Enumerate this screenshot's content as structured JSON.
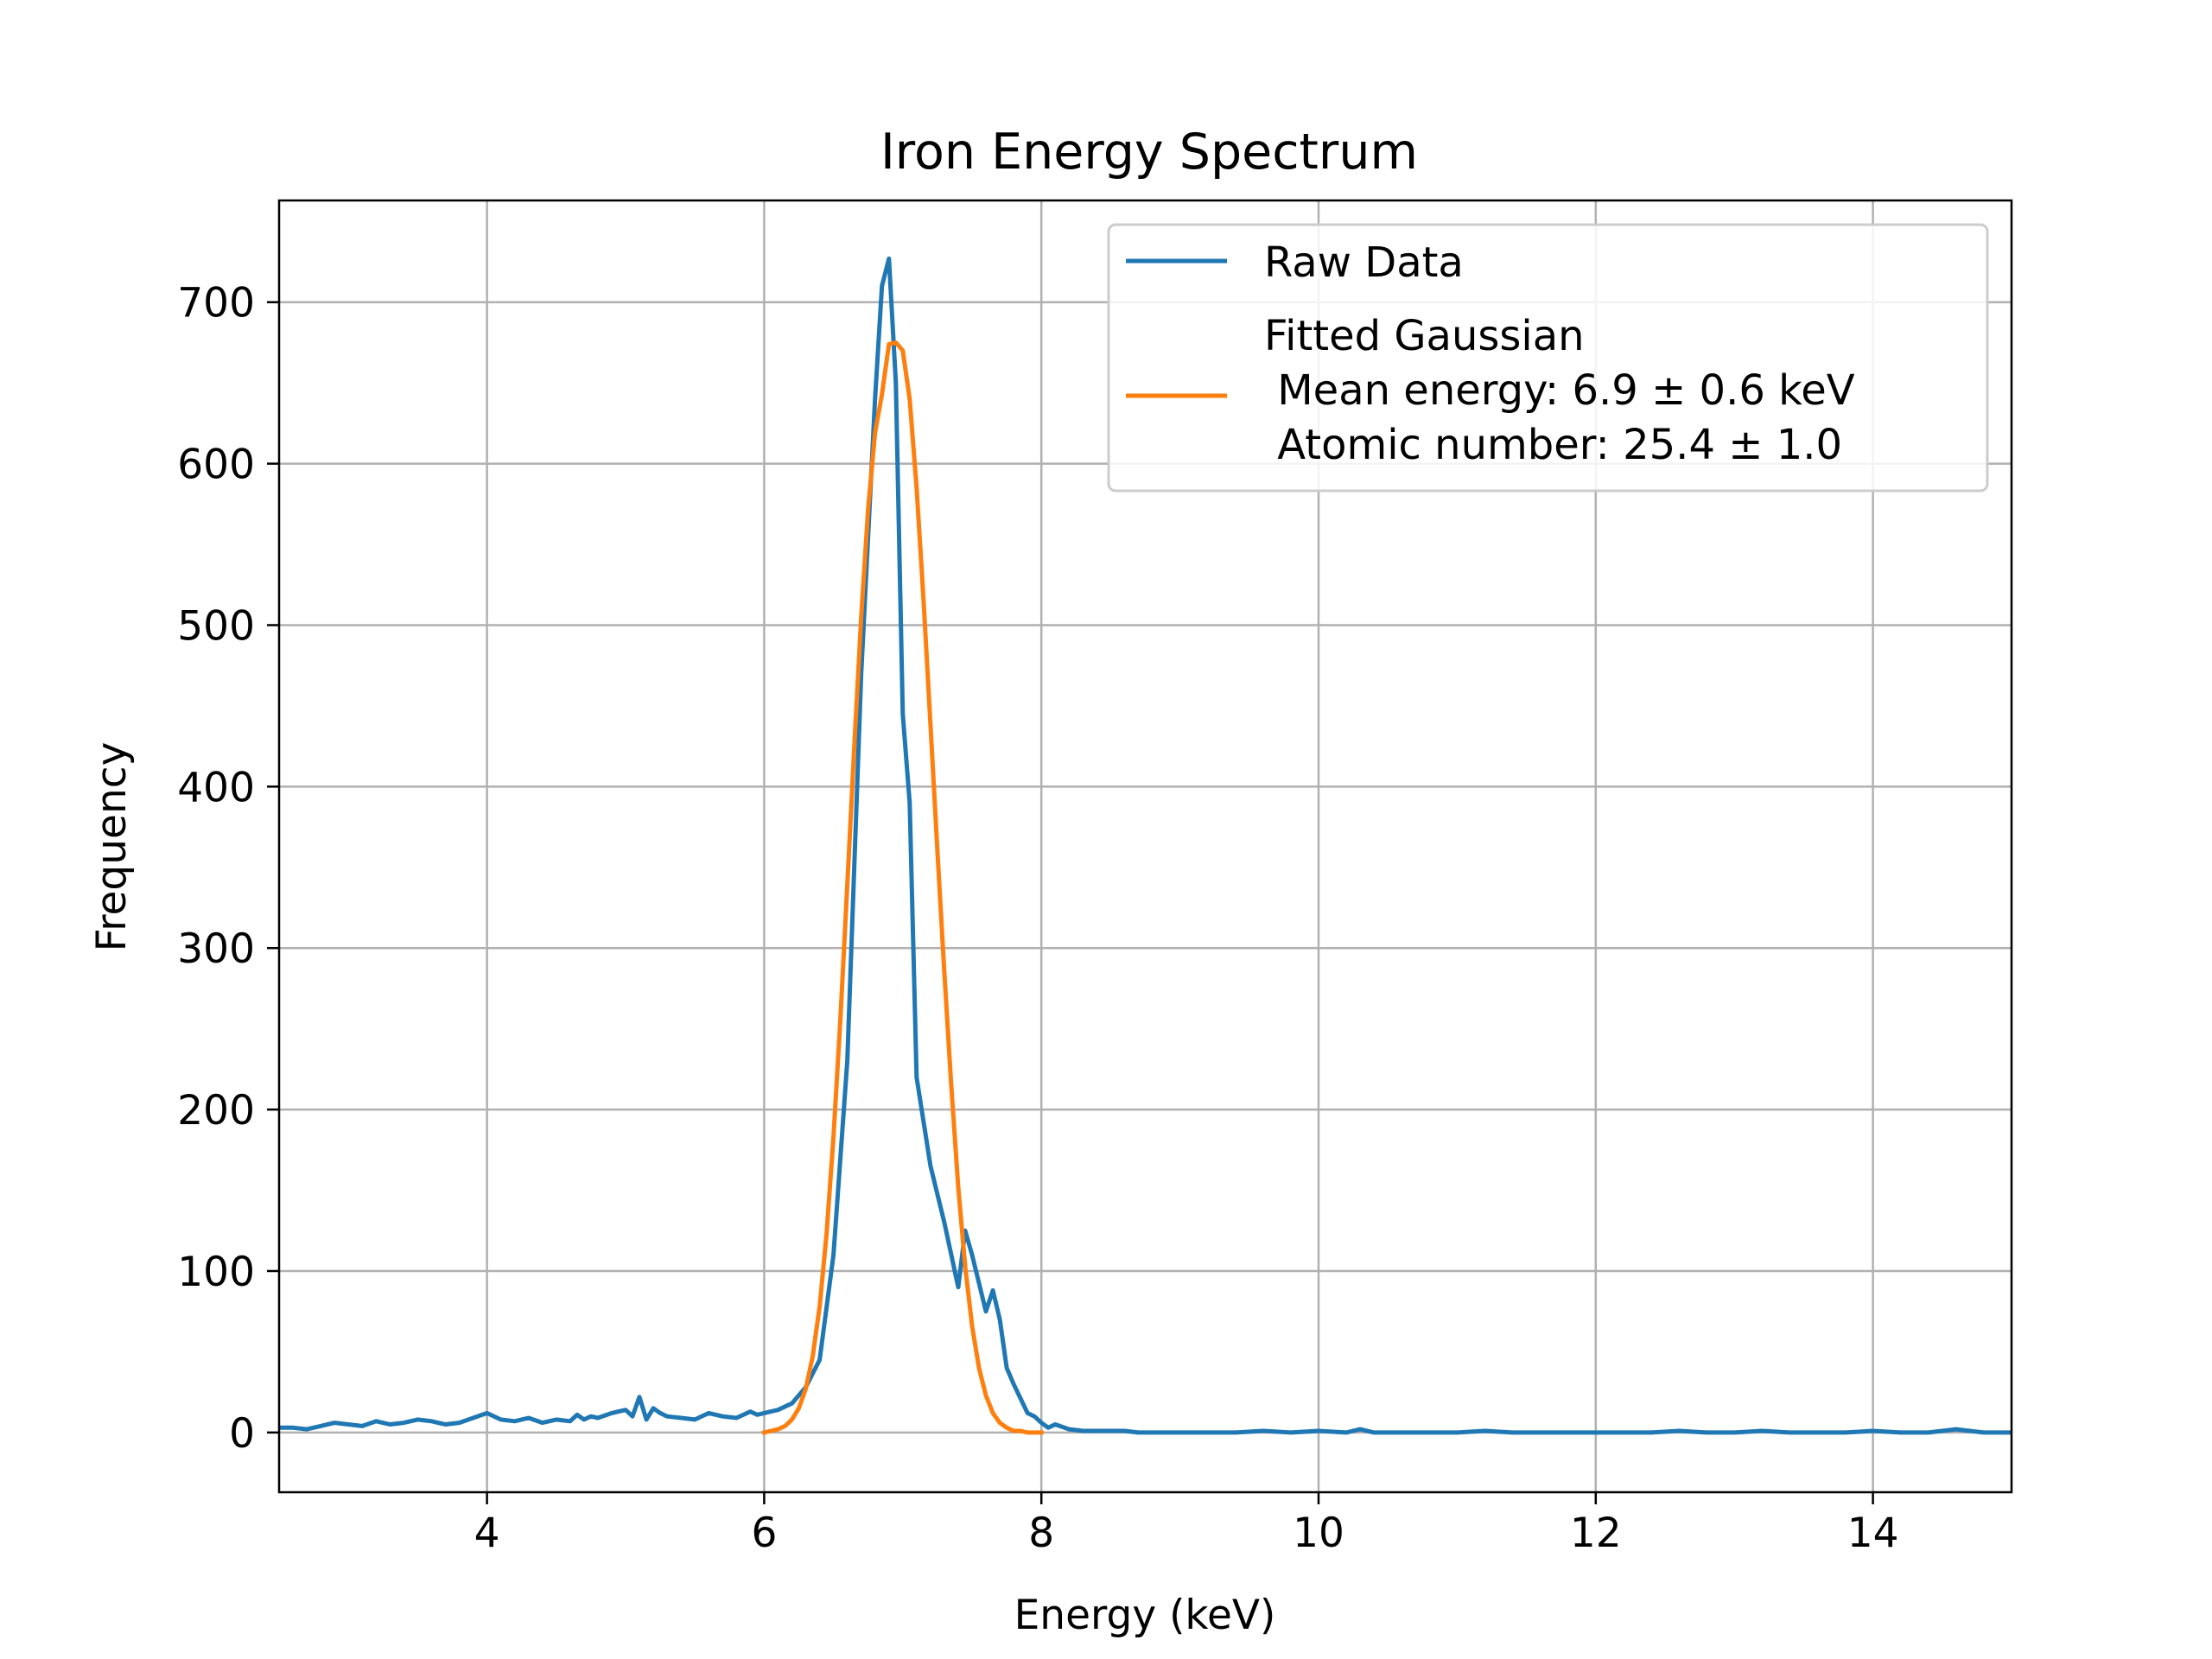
{
  "chart_data": {
    "type": "line",
    "title": "Iron Energy Spectrum",
    "xlabel": "Energy (keV)",
    "ylabel": "Frequency",
    "xlim": [
      2.5,
      15
    ],
    "ylim": [
      -37,
      763
    ],
    "xticks": [
      4,
      6,
      8,
      10,
      12,
      14
    ],
    "yticks": [
      0,
      100,
      200,
      300,
      400,
      500,
      600,
      700
    ],
    "grid": true,
    "legend_placement": "top-right",
    "colors": {
      "raw": "#1f77b4",
      "fit": "#ff7f0e",
      "grid": "#b0b0b0"
    },
    "series": [
      {
        "name": "Raw Data",
        "kind": "raw",
        "x": [
          2.5,
          2.6,
          2.7,
          2.8,
          2.9,
          3.0,
          3.1,
          3.2,
          3.3,
          3.4,
          3.5,
          3.6,
          3.7,
          3.8,
          3.9,
          4.0,
          4.1,
          4.2,
          4.3,
          4.4,
          4.5,
          4.6,
          4.65,
          4.7,
          4.75,
          4.8,
          4.9,
          5.0,
          5.05,
          5.1,
          5.15,
          5.2,
          5.25,
          5.3,
          5.4,
          5.5,
          5.6,
          5.7,
          5.8,
          5.9,
          5.95,
          6.0,
          6.1,
          6.2,
          6.3,
          6.4,
          6.5,
          6.6,
          6.7,
          6.8,
          6.85,
          6.9,
          6.95,
          7.0,
          7.05,
          7.1,
          7.2,
          7.3,
          7.4,
          7.45,
          7.5,
          7.6,
          7.65,
          7.7,
          7.75,
          7.8,
          7.9,
          7.95,
          8.0,
          8.05,
          8.1,
          8.2,
          8.3,
          8.4,
          8.5,
          8.6,
          8.7,
          8.8,
          9.0,
          9.2,
          9.4,
          9.6,
          9.8,
          10.0,
          10.2,
          10.3,
          10.4,
          10.6,
          10.8,
          11.0,
          11.2,
          11.4,
          11.6,
          11.8,
          12.0,
          12.2,
          12.4,
          12.6,
          12.8,
          13.0,
          13.2,
          13.4,
          13.6,
          13.8,
          14.0,
          14.2,
          14.4,
          14.6,
          14.8,
          15.0
        ],
        "y": [
          3,
          3,
          2,
          4,
          6,
          5,
          4,
          7,
          5,
          6,
          8,
          7,
          5,
          6,
          9,
          12,
          8,
          7,
          9,
          6,
          8,
          7,
          11,
          8,
          10,
          9,
          12,
          14,
          10,
          22,
          8,
          15,
          12,
          10,
          9,
          8,
          12,
          10,
          9,
          13,
          11,
          12,
          14,
          18,
          28,
          45,
          110,
          230,
          470,
          640,
          710,
          727,
          650,
          445,
          390,
          220,
          165,
          130,
          90,
          125,
          110,
          75,
          88,
          70,
          40,
          30,
          12,
          10,
          6,
          3,
          5,
          2,
          1,
          1,
          1,
          1,
          0,
          0,
          0,
          0,
          0,
          1,
          0,
          1,
          0,
          2,
          0,
          0,
          0,
          0,
          1,
          0,
          0,
          0,
          0,
          0,
          0,
          1,
          0,
          0,
          1,
          0,
          0,
          0,
          1,
          0,
          0,
          2,
          0,
          0
        ]
      },
      {
        "name": "Fitted Gaussian\n Mean energy: 6.9 ± 0.6 keV\n Atomic number: 25.4 ± 1.0",
        "kind": "fit",
        "x": [
          6.0,
          6.05,
          6.1,
          6.15,
          6.2,
          6.25,
          6.3,
          6.35,
          6.4,
          6.45,
          6.5,
          6.55,
          6.6,
          6.65,
          6.7,
          6.75,
          6.8,
          6.85,
          6.9,
          6.95,
          7.0,
          7.05,
          7.1,
          7.15,
          7.2,
          7.25,
          7.3,
          7.35,
          7.4,
          7.45,
          7.5,
          7.55,
          7.6,
          7.65,
          7.7,
          7.75,
          7.8,
          7.85,
          7.9,
          7.95,
          8.0
        ],
        "y": [
          0,
          1,
          2,
          4,
          8,
          15,
          27,
          47,
          78,
          123,
          183,
          256,
          339,
          425,
          505,
          572,
          619,
          643,
          674,
          675,
          670,
          640,
          585,
          515,
          438,
          360,
          285,
          215,
          152,
          103,
          66,
          40,
          23,
          12,
          6,
          3,
          1,
          1,
          0,
          0,
          0
        ]
      }
    ]
  },
  "legend": {
    "raw_label": "Raw Data",
    "fit_line1": "Fitted Gaussian",
    "fit_line2": " Mean energy: 6.9 ± 0.6 keV",
    "fit_line3": " Atomic number: 25.4 ± 1.0"
  }
}
